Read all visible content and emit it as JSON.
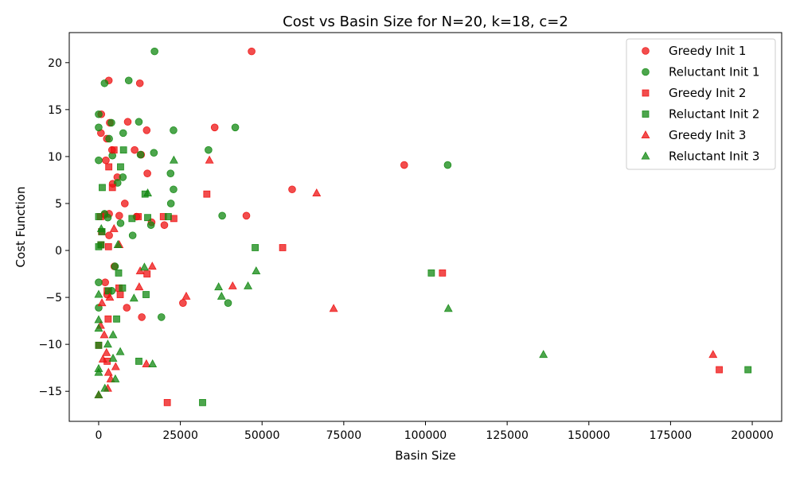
{
  "chart_data": {
    "type": "scatter",
    "title": "Cost vs Basin Size for N=20, k=18, c=2",
    "xlabel": "Basin Size",
    "ylabel": "Cost Function",
    "xlim": [
      -9000,
      209000
    ],
    "ylim": [
      -18.2,
      23.2
    ],
    "xticks": [
      0,
      25000,
      50000,
      75000,
      100000,
      125000,
      150000,
      175000,
      200000
    ],
    "yticks": [
      -15,
      -10,
      -5,
      0,
      5,
      10,
      15,
      20
    ],
    "grid": false,
    "legend_position": "top-right",
    "colors": {
      "greedy": "#ee1111",
      "reluctant": "#118811"
    },
    "series": [
      {
        "name": "Greedy Init 1",
        "marker": "circle",
        "color_key": "greedy",
        "points": [
          [
            46800,
            21.2
          ],
          [
            3100,
            18.1
          ],
          [
            12600,
            17.8
          ],
          [
            800,
            14.5
          ],
          [
            3400,
            13.6
          ],
          [
            8900,
            13.7
          ],
          [
            14700,
            12.8
          ],
          [
            35500,
            13.1
          ],
          [
            700,
            12.5
          ],
          [
            2500,
            11.9
          ],
          [
            4100,
            10.7
          ],
          [
            11000,
            10.7
          ],
          [
            13000,
            10.2
          ],
          [
            2200,
            9.6
          ],
          [
            93500,
            9.1
          ],
          [
            14900,
            8.2
          ],
          [
            5700,
            7.8
          ],
          [
            4300,
            7.1
          ],
          [
            59200,
            6.5
          ],
          [
            8000,
            5.0
          ],
          [
            1800,
            3.8
          ],
          [
            3200,
            3.9
          ],
          [
            6300,
            3.7
          ],
          [
            11600,
            3.6
          ],
          [
            45200,
            3.7
          ],
          [
            16200,
            3.0
          ],
          [
            20100,
            2.7
          ],
          [
            3200,
            1.6
          ],
          [
            4800,
            -1.7
          ],
          [
            2000,
            -3.4
          ],
          [
            2600,
            -4.7
          ],
          [
            25800,
            -5.6
          ],
          [
            8600,
            -6.1
          ],
          [
            13200,
            -7.1
          ]
        ]
      },
      {
        "name": "Reluctant Init 1",
        "marker": "circle",
        "color_key": "reluctant",
        "points": [
          [
            17100,
            21.2
          ],
          [
            1800,
            17.8
          ],
          [
            9200,
            18.1
          ],
          [
            0,
            14.5
          ],
          [
            3900,
            13.6
          ],
          [
            12300,
            13.7
          ],
          [
            0,
            13.1
          ],
          [
            41800,
            13.1
          ],
          [
            7500,
            12.5
          ],
          [
            22900,
            12.8
          ],
          [
            3200,
            11.9
          ],
          [
            33600,
            10.7
          ],
          [
            16900,
            10.4
          ],
          [
            12800,
            10.2
          ],
          [
            4200,
            10.1
          ],
          [
            0,
            9.6
          ],
          [
            106800,
            9.1
          ],
          [
            22000,
            8.2
          ],
          [
            7400,
            7.8
          ],
          [
            5800,
            7.2
          ],
          [
            22900,
            6.5
          ],
          [
            22100,
            5.0
          ],
          [
            1800,
            3.9
          ],
          [
            2800,
            3.5
          ],
          [
            37800,
            3.7
          ],
          [
            6700,
            2.9
          ],
          [
            16000,
            2.7
          ],
          [
            10400,
            1.6
          ],
          [
            5000,
            -1.7
          ],
          [
            0,
            -3.4
          ],
          [
            4000,
            -4.3
          ],
          [
            39600,
            -5.6
          ],
          [
            0,
            -6.1
          ],
          [
            19200,
            -7.1
          ]
        ]
      },
      {
        "name": "Greedy Init 2",
        "marker": "square",
        "color_key": "greedy",
        "points": [
          [
            4700,
            10.7
          ],
          [
            3100,
            8.9
          ],
          [
            4200,
            6.7
          ],
          [
            33100,
            6.0
          ],
          [
            600,
            3.6
          ],
          [
            12100,
            3.6
          ],
          [
            19800,
            3.6
          ],
          [
            23000,
            3.4
          ],
          [
            900,
            2.0
          ],
          [
            700,
            0.6
          ],
          [
            3000,
            0.4
          ],
          [
            56300,
            0.3
          ],
          [
            14800,
            -2.5
          ],
          [
            105200,
            -2.4
          ],
          [
            6200,
            -4.0
          ],
          [
            2600,
            -4.3
          ],
          [
            6600,
            -4.7
          ],
          [
            2900,
            -7.3
          ],
          [
            0,
            -10.1
          ],
          [
            2600,
            -11.8
          ],
          [
            189900,
            -12.7
          ],
          [
            21000,
            -16.2
          ]
        ]
      },
      {
        "name": "Reluctant Init 2",
        "marker": "square",
        "color_key": "reluctant",
        "points": [
          [
            7600,
            10.7
          ],
          [
            6700,
            8.9
          ],
          [
            1100,
            6.7
          ],
          [
            14200,
            6.0
          ],
          [
            0,
            3.6
          ],
          [
            10200,
            3.4
          ],
          [
            15000,
            3.5
          ],
          [
            21300,
            3.6
          ],
          [
            1000,
            2.0
          ],
          [
            700,
            0.6
          ],
          [
            0,
            0.4
          ],
          [
            47900,
            0.3
          ],
          [
            6100,
            -2.4
          ],
          [
            101800,
            -2.4
          ],
          [
            7300,
            -4.0
          ],
          [
            3000,
            -4.3
          ],
          [
            14500,
            -4.7
          ],
          [
            5500,
            -7.3
          ],
          [
            0,
            -10.1
          ],
          [
            12300,
            -11.8
          ],
          [
            198700,
            -12.7
          ],
          [
            31800,
            -16.2
          ]
        ]
      },
      {
        "name": "Greedy Init 3",
        "marker": "triangle",
        "color_key": "greedy",
        "points": [
          [
            33900,
            9.6
          ],
          [
            66700,
            6.1
          ],
          [
            4700,
            2.3
          ],
          [
            6300,
            0.6
          ],
          [
            16400,
            -1.7
          ],
          [
            12700,
            -2.2
          ],
          [
            12400,
            -3.9
          ],
          [
            41000,
            -3.8
          ],
          [
            26800,
            -4.9
          ],
          [
            1000,
            -5.6
          ],
          [
            71900,
            -6.2
          ],
          [
            3400,
            -5.0
          ],
          [
            600,
            -8.0
          ],
          [
            1700,
            -9.0
          ],
          [
            2400,
            -10.9
          ],
          [
            1300,
            -11.6
          ],
          [
            5200,
            -12.4
          ],
          [
            3000,
            -13.0
          ],
          [
            14600,
            -12.1
          ],
          [
            188000,
            -11.1
          ],
          [
            3700,
            -13.7
          ],
          [
            2800,
            -14.7
          ],
          [
            0,
            -15.4
          ]
        ]
      },
      {
        "name": "Reluctant Init 3",
        "marker": "triangle",
        "color_key": "reluctant",
        "points": [
          [
            23000,
            9.6
          ],
          [
            15000,
            6.1
          ],
          [
            800,
            2.3
          ],
          [
            5900,
            0.6
          ],
          [
            14000,
            -1.8
          ],
          [
            48200,
            -2.2
          ],
          [
            36700,
            -3.9
          ],
          [
            45700,
            -3.8
          ],
          [
            37600,
            -4.9
          ],
          [
            0,
            -4.7
          ],
          [
            107000,
            -6.2
          ],
          [
            10800,
            -5.1
          ],
          [
            0,
            -7.4
          ],
          [
            4400,
            -9.0
          ],
          [
            2800,
            -10.0
          ],
          [
            6600,
            -10.8
          ],
          [
            4400,
            -11.5
          ],
          [
            0,
            -12.6
          ],
          [
            16500,
            -12.1
          ],
          [
            136100,
            -11.1
          ],
          [
            5100,
            -13.7
          ],
          [
            1900,
            -14.7
          ],
          [
            0,
            -15.4
          ],
          [
            0,
            -8.3
          ],
          [
            0,
            -13.0
          ]
        ]
      }
    ]
  }
}
